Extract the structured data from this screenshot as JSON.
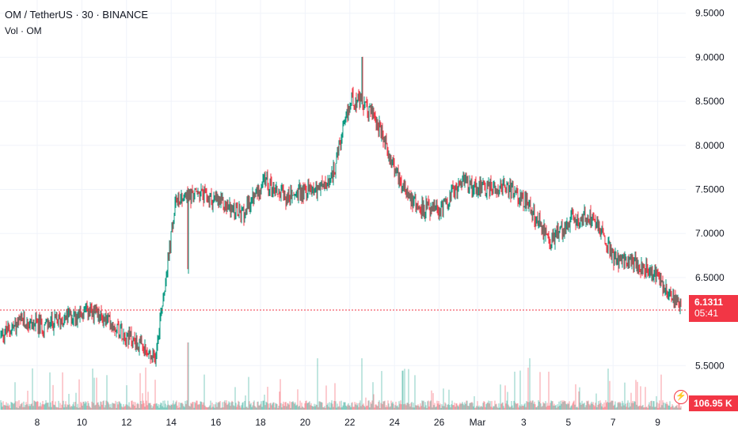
{
  "legend": {
    "symbol_line": "OM / TetherUS · 30 · BINANCE",
    "volume_line": "Vol · OM"
  },
  "last_price": {
    "value": "6.1311",
    "countdown": "05:41"
  },
  "volume_tag": {
    "value": "106.95 K"
  },
  "colors": {
    "up": "#089981",
    "down": "#f23645",
    "grid": "#f0f3fa",
    "axis_text": "#131722"
  },
  "icons": {
    "alert": "lightning-bolt-icon"
  },
  "chart_data": {
    "type": "candlestick",
    "x_tick_labels": [
      "8",
      "10",
      "12",
      "14",
      "16",
      "18",
      "20",
      "22",
      "24",
      "26",
      "Mar",
      "3",
      "5",
      "7",
      "9"
    ],
    "y_tick_labels": [
      "9.5000",
      "9.0000",
      "8.5000",
      "8.0000",
      "7.5000",
      "7.0000",
      "6.5000",
      "5.5000"
    ],
    "ylim": [
      5.0,
      9.65
    ],
    "x": [
      "Feb 7",
      "Feb 8",
      "Feb 9",
      "Feb 10",
      "Feb 11",
      "Feb 12",
      "Feb 13",
      "Feb 14",
      "Feb 15",
      "Feb 16",
      "Feb 17",
      "Feb 18",
      "Feb 19",
      "Feb 20",
      "Feb 21",
      "Feb 22",
      "Feb 23",
      "Feb 24",
      "Feb 25",
      "Feb 26",
      "Feb 27",
      "Feb 28",
      "Mar 1",
      "Mar 2",
      "Mar 3",
      "Mar 4",
      "Mar 5",
      "Mar 6",
      "Mar 7",
      "Mar 8",
      "Mar 9",
      "Mar 10"
    ],
    "price_path": [
      5.85,
      6.0,
      5.95,
      6.05,
      6.1,
      6.0,
      5.8,
      5.55,
      7.4,
      7.45,
      7.35,
      7.2,
      7.6,
      7.4,
      7.5,
      7.55,
      8.55,
      8.35,
      7.7,
      7.3,
      7.25,
      7.6,
      7.5,
      7.55,
      7.35,
      6.9,
      7.15,
      7.2,
      6.7,
      6.65,
      6.5,
      6.13
    ],
    "volume_max_k": 400
  }
}
